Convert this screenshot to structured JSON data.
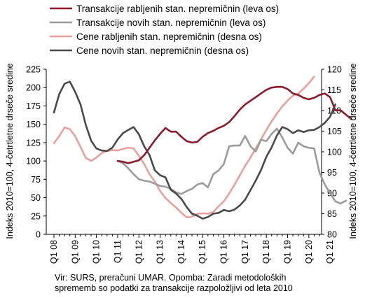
{
  "chart_data": {
    "type": "line",
    "x_labels": [
      "Q1 08",
      "Q1 09",
      "Q1 10",
      "Q1 11",
      "Q1 12",
      "Q1 13",
      "Q1 14",
      "Q1 15",
      "Q1 16",
      "Q1 17",
      "Q1 18",
      "Q1 19",
      "Q1 20",
      "Q1 21"
    ],
    "x_start": "Q1 08",
    "left_axis": {
      "label": "Indeks 2010=100, 4-četrtletne drseče sredine",
      "ylim": [
        0,
        225
      ],
      "ticks": [
        0,
        25,
        50,
        75,
        100,
        125,
        150,
        175,
        200,
        225
      ]
    },
    "right_axis": {
      "label": "Indeks 2010=100, 4-četrtletne drseče sredine",
      "ylim": [
        80,
        120
      ],
      "ticks": [
        80,
        85,
        90,
        95,
        100,
        105,
        110,
        115,
        120
      ]
    },
    "series": [
      {
        "name": "Transakcije rabljenih stan. nepremičnin (leva os)",
        "axis": "left",
        "color": "#8b1a2b",
        "start": 12,
        "values": [
          100,
          99,
          97,
          99,
          101,
          108,
          118,
          128,
          137,
          145,
          140,
          140,
          133,
          127,
          125,
          126,
          133,
          138,
          141,
          145,
          148,
          153,
          161,
          170,
          177,
          182,
          187,
          192,
          197,
          200,
          201,
          201,
          198,
          192,
          190,
          186,
          184,
          186,
          190,
          192,
          187,
          169,
          169,
          163,
          157
        ]
      },
      {
        "name": "Transakcije novih stan. nepremičnin (leva os)",
        "axis": "left",
        "color": "#9b9b9b",
        "start": 12,
        "values": [
          100,
          97,
          90,
          82,
          75,
          73,
          72,
          69,
          66,
          65,
          62,
          57,
          55,
          59,
          62,
          68,
          70,
          64,
          82,
          87,
          96,
          120,
          121,
          121,
          134,
          120,
          113,
          129,
          127,
          137,
          144,
          132,
          118,
          110,
          125,
          120,
          118,
          117,
          84,
          68,
          56,
          45,
          42,
          46
        ]
      },
      {
        "name": "Cene rabljenih stan. nepremičnin (desna os)",
        "axis": "right",
        "color": "#e8a09a",
        "start": 0,
        "values": [
          102.1,
          103.8,
          105.9,
          105.5,
          103.8,
          101.2,
          98.5,
          97.8,
          98.6,
          99.7,
          100.2,
          100.4,
          100.3,
          100.7,
          101.0,
          100.8,
          99.0,
          97.0,
          94.6,
          92.8,
          90.5,
          88.8,
          87.6,
          86.5,
          85.2,
          84.1,
          84.3,
          85.0,
          85.1,
          85.0,
          85.4,
          86.8,
          88.0,
          89.9,
          92.0,
          94.3,
          96.6,
          98.6,
          100.8,
          103.0,
          105.3,
          107.4,
          109.3,
          111.0,
          112.4,
          113.6,
          114.1,
          115.3,
          116.6,
          118.2
        ]
      },
      {
        "name": "Cene novih stan. nepremičnin (desna os)",
        "axis": "right",
        "color": "#4a4a4a",
        "start": 0,
        "values": [
          109.5,
          114.0,
          116.5,
          117.0,
          114.5,
          111.5,
          106.5,
          102.7,
          100.8,
          100.3,
          100.2,
          101.0,
          103.0,
          104.5,
          105.3,
          106.0,
          104.2,
          101.3,
          99.2,
          95.5,
          94.3,
          93.8,
          90.8,
          89.9,
          88.6,
          86.6,
          85.0,
          84.5,
          83.8,
          84.2,
          85.0,
          85.2,
          85.9,
          85.6,
          86.0,
          87.0,
          88.4,
          90.7,
          93.0,
          95.6,
          98.8,
          101.1,
          104.0,
          106.0,
          105.5,
          104.5,
          105.2,
          104.8,
          105.2,
          105.3,
          106.0,
          107.0,
          108.5,
          111.5
        ]
      }
    ]
  },
  "note": {
    "line1": "Vir: SURS, preračuni UMAR. Opomba: Zaradi metodoloških",
    "line2": "sprememb so podatki za transakcije razpoložljivi od leta 2010"
  }
}
